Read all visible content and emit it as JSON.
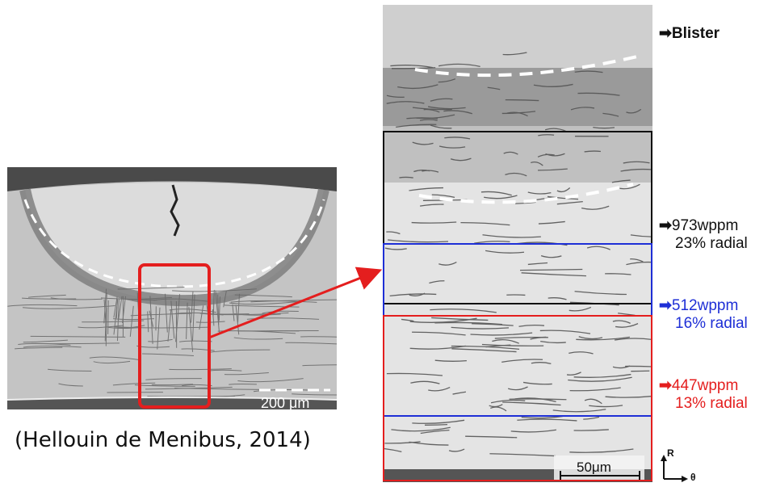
{
  "citation": "(Hellouin de Menibus, 2014)",
  "left_panel": {
    "scale_bar_label": "200 μm",
    "highlight_color": "#e41e1e"
  },
  "right_panel": {
    "scale_bar_label": "50μm",
    "annotations": [
      {
        "id": "blister",
        "line1": "Blister",
        "line2": "",
        "color": "#111111"
      },
      {
        "id": "zone-973",
        "line1": "973wppm",
        "line2": "23% radial",
        "color": "#111111"
      },
      {
        "id": "zone-512",
        "line1": "512wppm",
        "line2": "16% radial",
        "color": "#1e2fd6"
      },
      {
        "id": "zone-447",
        "line1": "447wppm",
        "line2": "13% radial",
        "color": "#e41e1e"
      }
    ],
    "axes": {
      "vertical": "R",
      "horizontal": "θ"
    }
  }
}
